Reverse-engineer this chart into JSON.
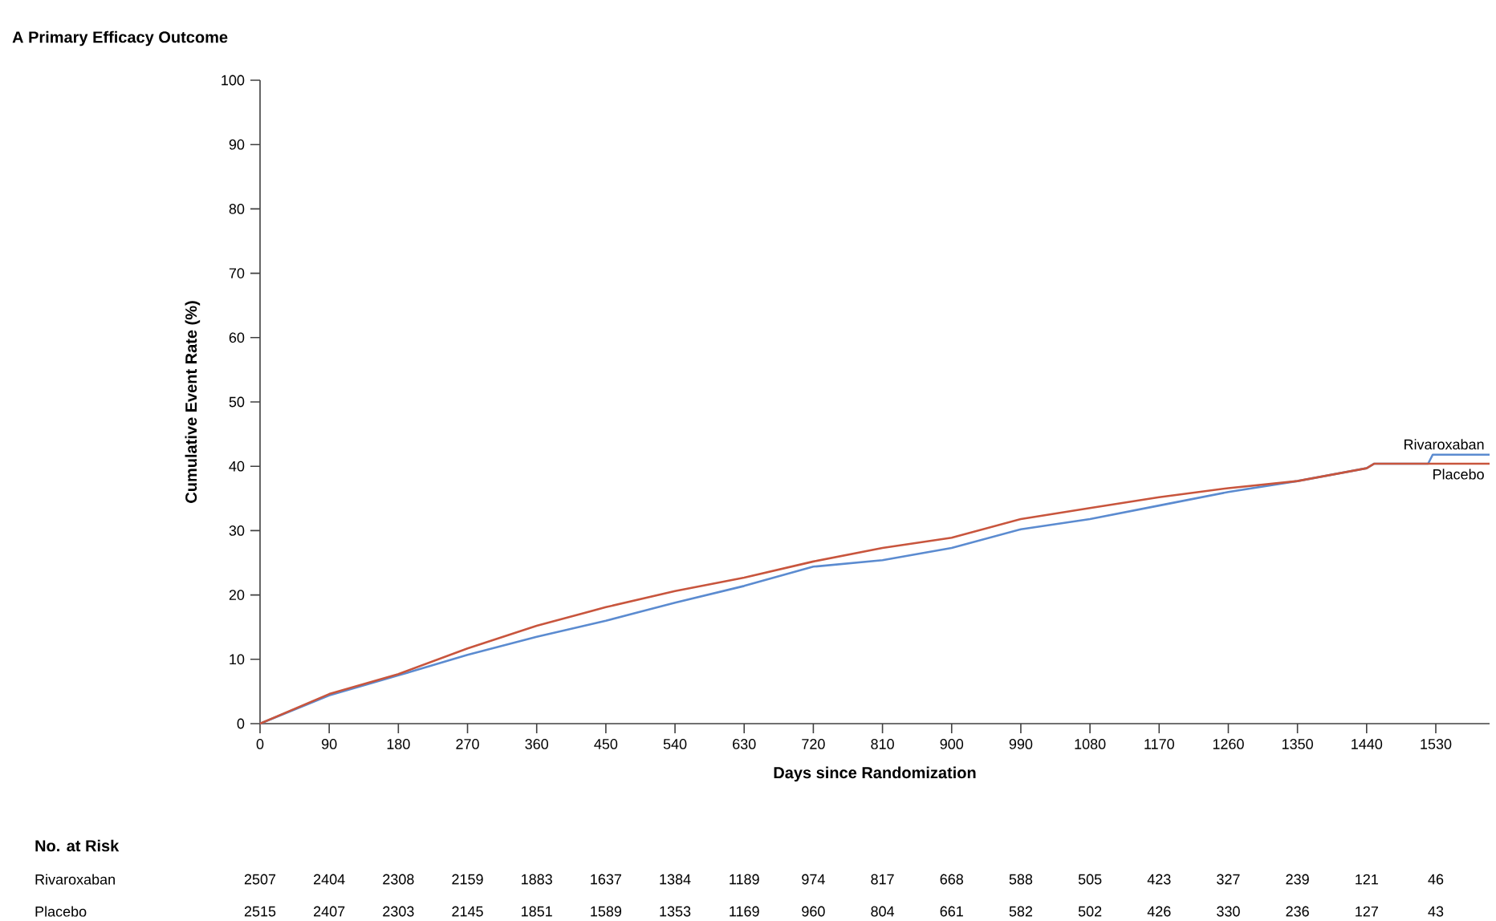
{
  "chart_data": {
    "type": "line",
    "title": "A  Primary Efficacy Outcome",
    "xlabel": "Days since Randomization",
    "ylabel": "Cumulative Event Rate (%)",
    "series": [
      {
        "name": "Rivaroxaban",
        "color": "#5b8bd0",
        "x": [
          0,
          90,
          180,
          270,
          360,
          450,
          540,
          630,
          720,
          810,
          900,
          990,
          1080,
          1170,
          1260,
          1350,
          1440,
          1450,
          1520,
          1526,
          1600
        ],
        "values": [
          0,
          4.4,
          7.5,
          10.7,
          13.5,
          16.0,
          18.8,
          21.4,
          24.4,
          25.4,
          27.3,
          30.2,
          31.8,
          33.9,
          36.0,
          37.7,
          39.7,
          40.4,
          40.4,
          41.8,
          41.8
        ]
      },
      {
        "name": "Placebo",
        "color": "#c8553d",
        "x": [
          0,
          90,
          180,
          270,
          360,
          450,
          540,
          630,
          720,
          810,
          900,
          990,
          1080,
          1170,
          1260,
          1350,
          1440,
          1450,
          1600
        ],
        "values": [
          0,
          4.6,
          7.7,
          11.7,
          15.2,
          18.1,
          20.6,
          22.7,
          25.2,
          27.3,
          28.9,
          31.8,
          33.5,
          35.2,
          36.6,
          37.7,
          39.7,
          40.4,
          40.4
        ]
      }
    ],
    "xlim": [
      0,
      1600
    ],
    "ylim": [
      0,
      100
    ],
    "xticks": [
      0,
      90,
      180,
      270,
      360,
      450,
      540,
      630,
      720,
      810,
      900,
      990,
      1080,
      1170,
      1260,
      1350,
      1440,
      1530
    ],
    "yticks": [
      0,
      10,
      20,
      30,
      40,
      50,
      60,
      70,
      80,
      90,
      100
    ],
    "grid": false,
    "marker": "none",
    "line_style": "solid",
    "annotations": [
      "**No. at Risk**",
      "Rivaroxaban",
      "2507",
      "2404",
      "2308",
      "2159",
      "1883",
      "1637",
      "1384",
      "1189",
      "974",
      "817",
      "668",
      "588",
      "505",
      "423",
      "327",
      "239",
      "121",
      "46",
      "Placebo",
      "2515",
      "2407",
      "2303",
      "2145",
      "1851",
      "1589",
      "1353",
      "1169",
      "960",
      "804",
      "661",
      "582",
      "502",
      "426",
      "330",
      "236",
      "127",
      "43"
    ]
  }
}
